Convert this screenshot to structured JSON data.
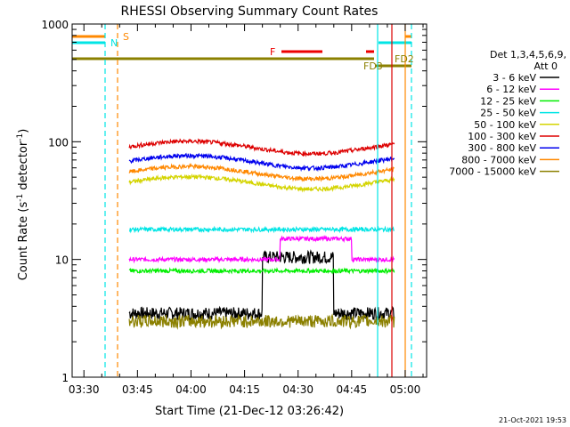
{
  "chart_data": {
    "type": "line",
    "title": "RHESSI Observing Summary Count Rates",
    "xlabel": "Start Time (21-Dec-12 03:26:42)",
    "ylabel_main": "Count Rate (s",
    "ylabel_sup1": "-1",
    "ylabel_mid": " detector",
    "ylabel_sup2": "-1",
    "ylabel_end": ")",
    "x_ticks": [
      "03:30",
      "03:45",
      "04:00",
      "04:15",
      "04:30",
      "04:45",
      "05:00"
    ],
    "x_tick_minutes": [
      30,
      45,
      60,
      75,
      90,
      105,
      120
    ],
    "xlim_minutes": [
      26.7,
      126
    ],
    "y_scale": "log",
    "ylim": [
      1,
      1000
    ],
    "y_ticks": [
      "1",
      "10",
      "100",
      "1000"
    ],
    "y_tick_values": [
      1,
      10,
      100,
      1000
    ],
    "legend_header": [
      "Det 1,3,4,5,6,9,",
      "Att 0"
    ],
    "series": [
      {
        "name": "3 - 6 keV",
        "color": "#000000",
        "level": 3.5
      },
      {
        "name": "6 - 12 keV",
        "color": "#ff00ff",
        "level": 10
      },
      {
        "name": "12 - 25 keV",
        "color": "#00ee00",
        "level": 8
      },
      {
        "name": "25 - 50 keV",
        "color": "#00e5e5",
        "level": 18
      },
      {
        "name": "50 - 100 keV",
        "color": "#d4d400",
        "level": 45
      },
      {
        "name": "100 - 300 keV",
        "color": "#dd0000",
        "level": 90
      },
      {
        "name": "300 - 800 keV",
        "color": "#0000ee",
        "level": 68
      },
      {
        "name": "800 - 7000 keV",
        "color": "#ff8800",
        "level": 55
      },
      {
        "name": "7000 - 15000 keV",
        "color": "#8b8000",
        "level": 3
      }
    ],
    "flags": [
      {
        "label": "S",
        "color": "#ff8800"
      },
      {
        "label": "N",
        "color": "#00e5e5"
      },
      {
        "label": "F",
        "color": "#ee0000"
      },
      {
        "label": "FD2",
        "color": "#8b8000"
      },
      {
        "label": "FD3",
        "color": "#8b8000"
      }
    ]
  },
  "footer": {
    "timestamp": "21-Oct-2021 19:53"
  }
}
